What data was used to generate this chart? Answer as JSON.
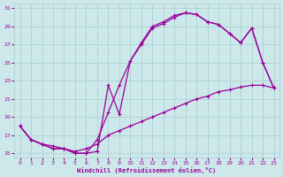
{
  "xlabel": "Windchill (Refroidissement éolien,°C)",
  "bg_color": "#cce8ea",
  "grid_color": "#aacccc",
  "line_color": "#990099",
  "xlim": [
    0,
    23
  ],
  "ylim": [
    15,
    31
  ],
  "xticks": [
    0,
    1,
    2,
    3,
    4,
    5,
    6,
    7,
    8,
    9,
    10,
    11,
    12,
    13,
    14,
    15,
    16,
    17,
    18,
    19,
    20,
    21,
    22,
    23
  ],
  "yticks": [
    15,
    17,
    19,
    21,
    23,
    25,
    27,
    29,
    31
  ],
  "curve1_x": [
    0,
    1,
    2,
    3,
    4,
    5,
    6,
    7,
    8,
    9,
    10,
    11,
    12,
    13,
    14,
    15,
    16,
    17,
    18,
    19,
    20,
    21,
    22,
    23
  ],
  "curve1_y": [
    18.0,
    16.5,
    16.0,
    15.5,
    15.5,
    15.0,
    15.0,
    15.2,
    22.5,
    19.3,
    25.2,
    27.2,
    29.0,
    29.5,
    30.2,
    30.5,
    30.3,
    29.5,
    29.2,
    28.2,
    27.2,
    28.8,
    25.0,
    22.2
  ],
  "curve2_x": [
    0,
    1,
    2,
    3,
    4,
    5,
    6,
    7,
    8,
    9,
    10,
    11,
    12,
    13,
    14,
    15,
    16,
    17,
    18,
    19,
    20,
    21,
    22,
    23
  ],
  "curve2_y": [
    18.0,
    16.5,
    16.0,
    15.5,
    15.5,
    15.0,
    15.0,
    16.5,
    19.5,
    22.5,
    25.2,
    27.0,
    28.8,
    29.3,
    30.0,
    30.5,
    30.3,
    29.5,
    29.2,
    28.2,
    27.2,
    28.8,
    25.0,
    22.2
  ],
  "curve3_x": [
    0,
    1,
    2,
    3,
    4,
    5,
    6,
    7,
    8,
    9,
    10,
    11,
    12,
    13,
    14,
    15,
    16,
    17,
    18,
    19,
    20,
    21,
    22,
    23
  ],
  "curve3_y": [
    18.0,
    16.5,
    16.0,
    15.8,
    15.5,
    15.2,
    15.5,
    16.0,
    17.0,
    17.5,
    18.0,
    18.5,
    19.0,
    19.5,
    20.0,
    20.5,
    21.0,
    21.3,
    21.8,
    22.0,
    22.3,
    22.5,
    22.5,
    22.2
  ]
}
